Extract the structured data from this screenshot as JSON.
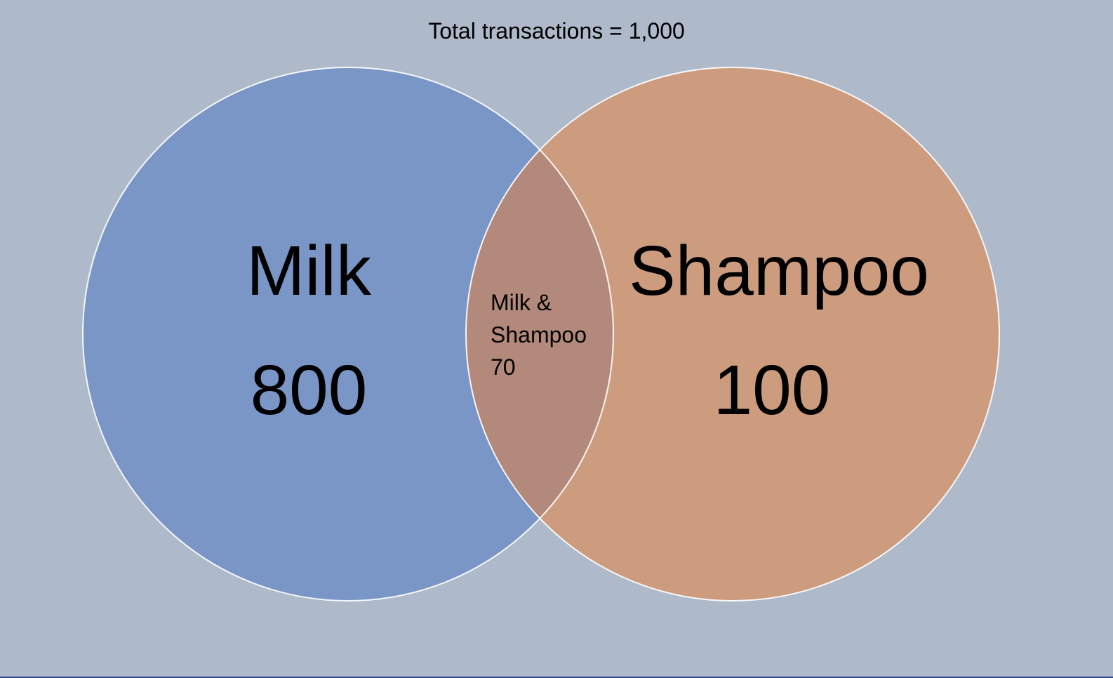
{
  "title": "Total transactions = 1,000",
  "sets": [
    {
      "name": "Milk",
      "count": "800",
      "color": "#7a96c6"
    },
    {
      "name": "Shampoo",
      "count": "100",
      "color": "#cd9c7f"
    }
  ],
  "overlap": {
    "line1": "Milk &",
    "line2": "Shampoo",
    "count": "70",
    "color": "#b3897b"
  },
  "background_color": "#aeb9ca",
  "outline_color": "#ffffff"
}
